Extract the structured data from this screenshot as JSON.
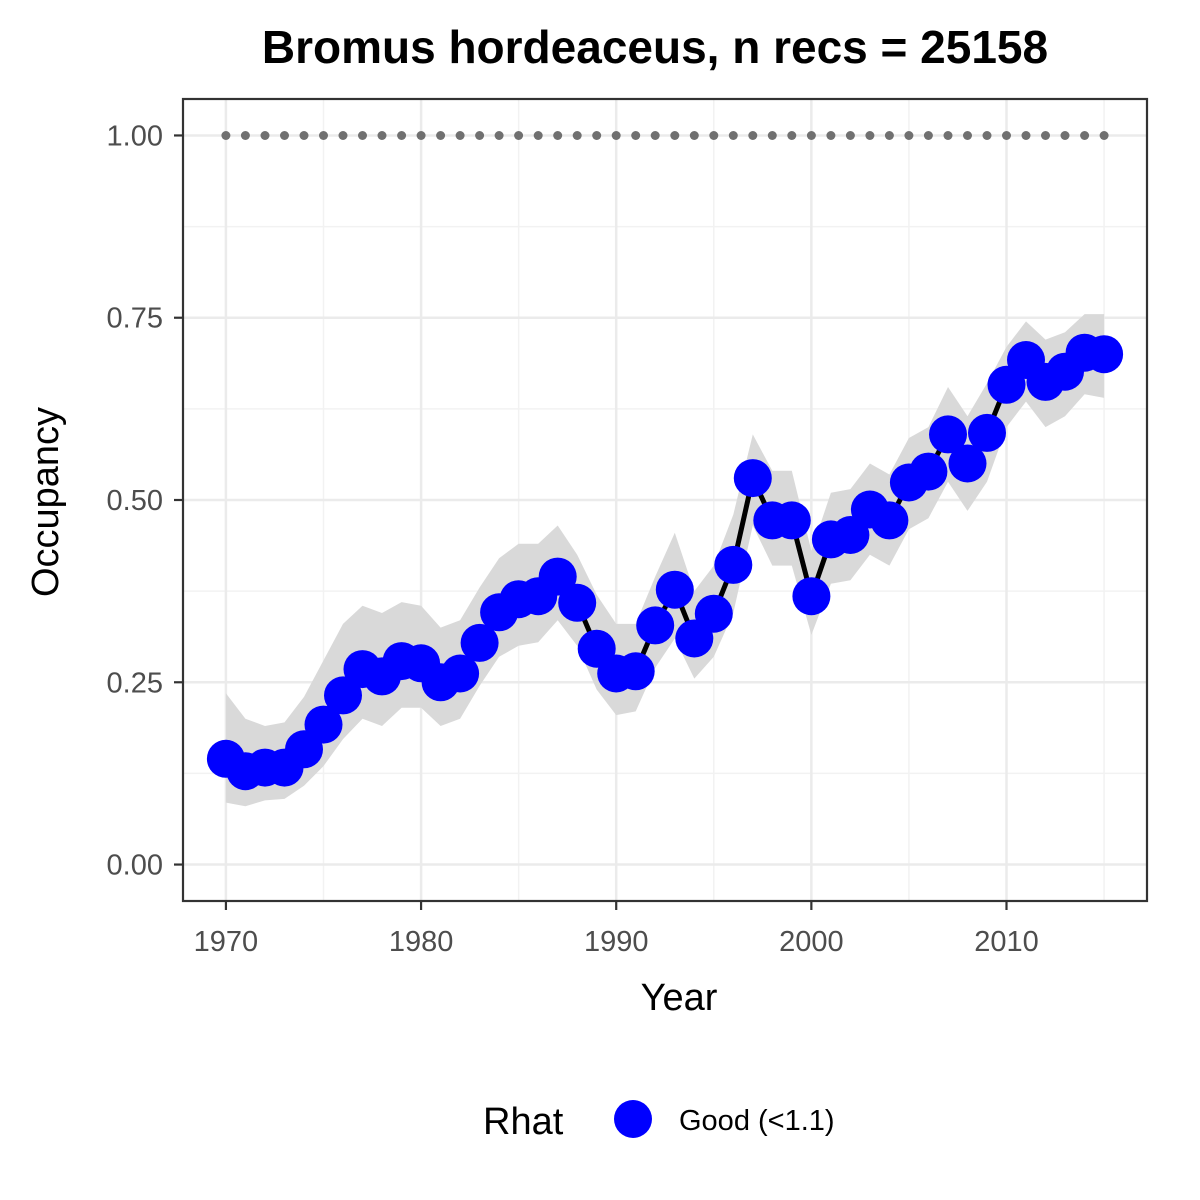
{
  "chart_data": {
    "type": "line",
    "title": "Bromus hordeaceus, n recs = 25158",
    "xlabel": "Year",
    "ylabel": "Occupancy",
    "xlim": [
      1967.8,
      2017.2
    ],
    "ylim": [
      -0.05,
      1.05
    ],
    "x_ticks": [
      1970,
      1980,
      1990,
      2000,
      2010
    ],
    "x_tick_labels": [
      "1970",
      "1980",
      "1990",
      "2000",
      "2010"
    ],
    "y_ticks": [
      0,
      0.25,
      0.5,
      0.75,
      1.0
    ],
    "y_tick_labels": [
      "0.00",
      "0.25",
      "0.50",
      "0.75",
      "1.00"
    ],
    "grid": true,
    "legend": {
      "position": "bottom",
      "title": "Rhat",
      "entries": [
        {
          "label": "Good (<1.1)",
          "color": "#0000ff"
        }
      ]
    },
    "colors": {
      "points": "#0000ff",
      "line": "#000000",
      "ribbon": "#d9d9d9",
      "reference": "#707070"
    },
    "series": [
      {
        "x": [
          1970,
          1971,
          1972,
          1973,
          1974,
          1975,
          1976,
          1977,
          1978,
          1979,
          1980,
          1981,
          1982,
          1983,
          1984,
          1985,
          1986,
          1987,
          1988,
          1989,
          1990,
          1991,
          1992,
          1993,
          1994,
          1995,
          1996,
          1997,
          1998,
          1999,
          2000,
          2001,
          2002,
          2003,
          2004,
          2005,
          2006,
          2007,
          2008,
          2009,
          2010,
          2011,
          2012,
          2013,
          2014,
          2015
        ],
        "y": [
          0.145,
          0.128,
          0.133,
          0.133,
          0.158,
          0.192,
          0.232,
          0.268,
          0.258,
          0.279,
          0.276,
          0.25,
          0.262,
          0.304,
          0.346,
          0.364,
          0.368,
          0.395,
          0.359,
          0.296,
          0.262,
          0.265,
          0.328,
          0.377,
          0.31,
          0.344,
          0.411,
          0.53,
          0.472,
          0.472,
          0.368,
          0.446,
          0.452,
          0.487,
          0.472,
          0.524,
          0.539,
          0.59,
          0.55,
          0.592,
          0.658,
          0.692,
          0.662,
          0.676,
          0.702,
          0.7
        ],
        "lower": [
          0.085,
          0.08,
          0.088,
          0.09,
          0.108,
          0.135,
          0.172,
          0.2,
          0.19,
          0.215,
          0.215,
          0.19,
          0.2,
          0.245,
          0.285,
          0.3,
          0.305,
          0.335,
          0.3,
          0.24,
          0.205,
          0.21,
          0.27,
          0.31,
          0.255,
          0.285,
          0.345,
          0.465,
          0.41,
          0.41,
          0.315,
          0.385,
          0.39,
          0.425,
          0.41,
          0.46,
          0.475,
          0.525,
          0.485,
          0.525,
          0.6,
          0.635,
          0.6,
          0.615,
          0.645,
          0.64
        ],
        "upper": [
          0.235,
          0.2,
          0.19,
          0.195,
          0.23,
          0.28,
          0.33,
          0.355,
          0.345,
          0.36,
          0.355,
          0.325,
          0.335,
          0.38,
          0.42,
          0.44,
          0.44,
          0.465,
          0.425,
          0.37,
          0.33,
          0.33,
          0.395,
          0.455,
          0.375,
          0.41,
          0.48,
          0.59,
          0.54,
          0.54,
          0.43,
          0.51,
          0.515,
          0.55,
          0.535,
          0.585,
          0.6,
          0.655,
          0.615,
          0.66,
          0.71,
          0.745,
          0.72,
          0.73,
          0.755,
          0.755
        ]
      },
      {
        "x": [
          1970,
          1971,
          1972,
          1973,
          1974,
          1975,
          1976,
          1977,
          1978,
          1979,
          1980,
          1981,
          1982,
          1983,
          1984,
          1985,
          1986,
          1987,
          1988,
          1989,
          1990,
          1991,
          1992,
          1993,
          1994,
          1995,
          1996,
          1997,
          1998,
          1999,
          2000,
          2001,
          2002,
          2003,
          2004,
          2005,
          2006,
          2007,
          2008,
          2009,
          2010,
          2011,
          2012,
          2013,
          2014,
          2015
        ],
        "y": [
          1,
          1,
          1,
          1,
          1,
          1,
          1,
          1,
          1,
          1,
          1,
          1,
          1,
          1,
          1,
          1,
          1,
          1,
          1,
          1,
          1,
          1,
          1,
          1,
          1,
          1,
          1,
          1,
          1,
          1,
          1,
          1,
          1,
          1,
          1,
          1,
          1,
          1,
          1,
          1,
          1,
          1,
          1,
          1,
          1,
          1
        ]
      }
    ]
  }
}
